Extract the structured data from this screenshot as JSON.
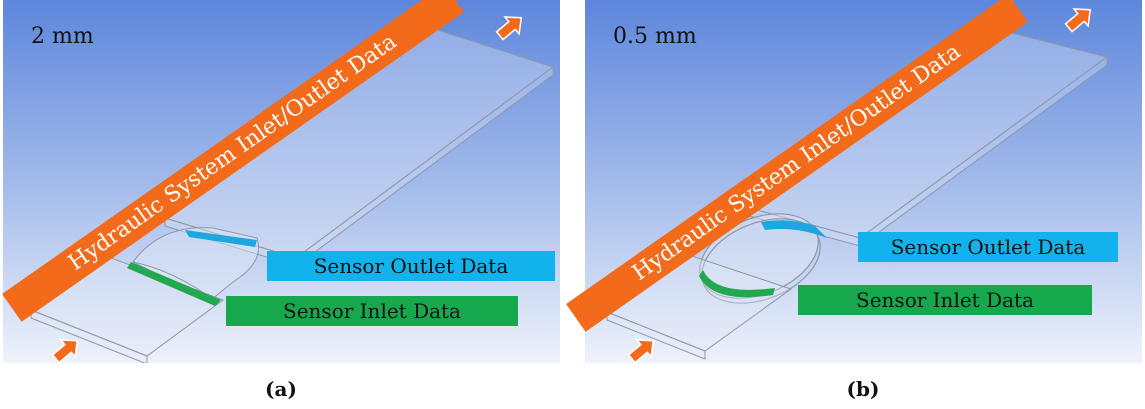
{
  "panels": [
    {
      "id": "a",
      "size_label": "2 mm",
      "hydraulic_label": "Hydraulic System Inlet/Outlet Data",
      "outlet_label": "Sensor Outlet Data",
      "inlet_label": "Sensor Inlet Data",
      "caption": "(a)"
    },
    {
      "id": "b",
      "size_label": "0.5 mm",
      "hydraulic_label": "Hydraulic System Inlet/Outlet Data",
      "outlet_label": "Sensor Outlet Data",
      "inlet_label": "Sensor Inlet Data",
      "caption": "(b)"
    }
  ],
  "colors": {
    "background_top": "#5d86dc",
    "background_bottom": "#eef2fb",
    "hydraulic_banner": "#f36b1a",
    "outlet_banner": "#12b2ec",
    "inlet_banner": "#16a84d",
    "flow_arrow": "#f36b1a"
  }
}
